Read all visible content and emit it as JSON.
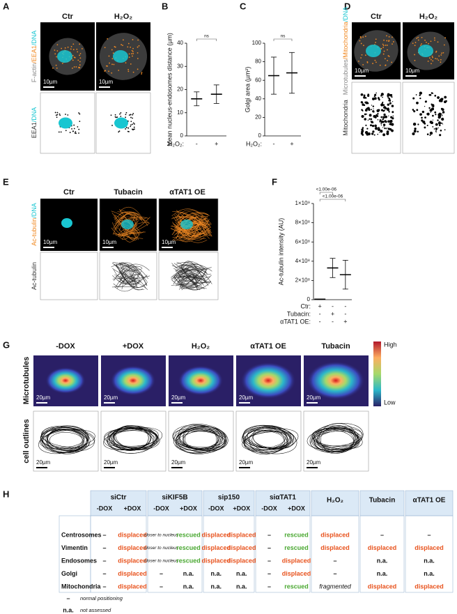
{
  "panel_A": {
    "letter": "A",
    "columns": [
      "Ctr",
      "H₂O₂"
    ],
    "rows": [
      [
        "F-actin",
        "/EEA1",
        "/DNA"
      ],
      [
        "EEA1",
        "/DNA"
      ]
    ],
    "row_colors": [
      [
        "#888888",
        "#f08a24",
        "#19c6d1"
      ],
      [
        "#333333",
        "#19c6d1"
      ]
    ],
    "scale_bar": "10µm"
  },
  "panel_D": {
    "letter": "D",
    "columns": [
      "Ctr",
      "H₂O₂"
    ],
    "rows": [
      [
        "Microtubules",
        "/Mitochondria",
        "/DNA"
      ],
      [
        "Mitochondria"
      ]
    ],
    "row_colors": [
      [
        "#888888",
        "#f08a24",
        "#19c6d1"
      ],
      [
        "#333333"
      ]
    ],
    "scale_bar": "10µm"
  },
  "panel_E": {
    "letter": "E",
    "columns": [
      "Ctr",
      "Tubacin",
      "αTAT1 OE"
    ],
    "rows": [
      [
        "Ac-tubulin",
        "/DNA"
      ],
      [
        "Ac-tubulin"
      ]
    ],
    "row_colors": [
      [
        "#f08a24",
        "#19c6d1"
      ],
      [
        "#333333"
      ]
    ],
    "scale_bar": "10µm"
  },
  "panel_G": {
    "letter": "G",
    "columns": [
      "-DOX",
      "+DOX",
      "H₂O₂",
      "αTAT1 OE",
      "Tubacin"
    ],
    "rows": [
      "Microtubules",
      "cell outlines"
    ],
    "colorbar": [
      "High",
      "Low"
    ],
    "scale_bar": "20µm"
  },
  "chart_data": [
    {
      "type": "dot-summary",
      "letter": "B",
      "ylabel": "Mean nucleus-endosomes distance (µm)",
      "group_label": "H₂O₂:",
      "categories": [
        "-",
        "+"
      ],
      "values": [
        16,
        18
      ],
      "errors": [
        3,
        4
      ],
      "ylim": [
        0,
        40
      ],
      "yticks": [
        0,
        10,
        20,
        30,
        40
      ],
      "significance": [
        "ns"
      ]
    },
    {
      "type": "dot-summary",
      "letter": "C",
      "ylabel": "Golgi area (µm²)",
      "group_label": "H₂O₂:",
      "categories": [
        "-",
        "+"
      ],
      "values": [
        65,
        68
      ],
      "errors": [
        20,
        22
      ],
      "ylim": [
        0,
        100
      ],
      "yticks": [
        0,
        20,
        40,
        60,
        80,
        100
      ],
      "significance": [
        "ns"
      ]
    },
    {
      "type": "dot-summary",
      "letter": "F",
      "ylabel": "Ac-tubulin intensity (AU)",
      "categories": [
        "Ctr",
        "Tubacin",
        "αTAT1 OE"
      ],
      "values": [
        5000000,
        330000000,
        260000000
      ],
      "errors": [
        3000000,
        100000000,
        150000000
      ],
      "ylim": [
        0,
        1000000000
      ],
      "yticks": [
        0,
        {
          "value": 200000000,
          "label": "2×10⁸"
        },
        {
          "value": 400000000,
          "label": "4×10⁸"
        },
        {
          "value": 600000000,
          "label": "6×10⁸"
        },
        {
          "value": 800000000,
          "label": "8×10⁸"
        },
        {
          "value": 1000000000,
          "label": "1×10⁹"
        }
      ],
      "significance": [
        "<1.00e-06",
        "<1.00e-06"
      ],
      "condition_rows": [
        {
          "name": "Ctr:",
          "signs": [
            "+",
            "-",
            "-"
          ]
        },
        {
          "name": "Tubacin:",
          "signs": [
            "-",
            "+",
            "-"
          ]
        },
        {
          "name": "αTAT1 OE:",
          "signs": [
            "-",
            "-",
            "+"
          ]
        }
      ]
    }
  ],
  "table": {
    "letter": "H",
    "groups": [
      {
        "name": "siCtr",
        "sub": [
          "-DOX",
          "+DOX"
        ]
      },
      {
        "name": "siKIF5B",
        "sub": [
          "-DOX",
          "+DOX"
        ]
      },
      {
        "name": "sip150",
        "sub": [
          "-DOX",
          "+DOX"
        ]
      },
      {
        "name": "siαTAT1",
        "sub": [
          "-DOX",
          "+DOX"
        ]
      },
      {
        "name": "H₂O₂",
        "sub": []
      },
      {
        "name": "Tubacin",
        "sub": []
      },
      {
        "name": "αTAT1 OE",
        "sub": []
      }
    ],
    "rows": [
      {
        "label": "Centrosomes",
        "cells": [
          "–",
          "displaced",
          "closer to nucleus",
          "rescued",
          "displaced",
          "displaced",
          "–",
          "rescued",
          "displaced",
          "–",
          "–"
        ]
      },
      {
        "label": "Vimentin",
        "cells": [
          "–",
          "displaced",
          "closer to nucleus",
          "rescued",
          "displaced",
          "displaced",
          "–",
          "rescued",
          "displaced",
          "displaced",
          "displaced"
        ]
      },
      {
        "label": "Endosomes",
        "cells": [
          "–",
          "displaced",
          "closer to nucleus",
          "rescued",
          "displaced",
          "displaced",
          "–",
          "displaced",
          "–",
          "n.a.",
          "n.a."
        ]
      },
      {
        "label": "Golgi",
        "cells": [
          "–",
          "displaced",
          "–",
          "n.a.",
          "n.a.",
          "n.a.",
          "–",
          "displaced",
          "–",
          "n.a.",
          "n.a."
        ]
      },
      {
        "label": "Mitochondria",
        "cells": [
          "–",
          "displaced",
          "–",
          "n.a.",
          "n.a.",
          "n.a.",
          "–",
          "rescued",
          "fragmented",
          "displaced",
          "displaced"
        ]
      }
    ],
    "legend": [
      {
        "symbol": "–",
        "text": "normal positioning"
      },
      {
        "symbol": "n.a.",
        "text": "not assessed"
      }
    ]
  }
}
